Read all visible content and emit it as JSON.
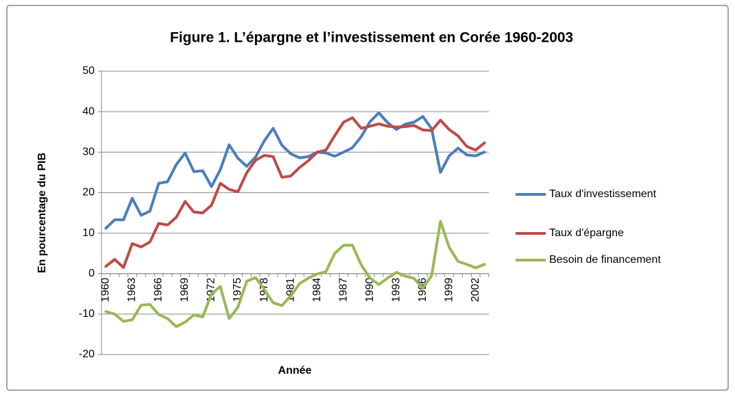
{
  "chart_data": {
    "type": "line",
    "title": "Figure 1. L’épargne et l’investissement en Corée 1960-2003",
    "y_label": "En pourcentage du PIB",
    "x_label": "Année",
    "categories": [
      "1960",
      null,
      null,
      "1963",
      null,
      null,
      "1966",
      null,
      null,
      "1969",
      null,
      null,
      "1972",
      null,
      null,
      "1975",
      null,
      null,
      "1978",
      null,
      null,
      "1981",
      null,
      null,
      "1984",
      null,
      null,
      "1987",
      null,
      null,
      "1990",
      null,
      null,
      "1993",
      null,
      null,
      "1996",
      null,
      null,
      "1999",
      null,
      null,
      "2002",
      null
    ],
    "series": [
      {
        "name": "Taux d'investissement",
        "color": "#4a7ebb",
        "values": [
          11.2,
          13.3,
          13.3,
          18.6,
          14.4,
          15.4,
          22.3,
          22.7,
          26.9,
          29.8,
          25.2,
          25.4,
          21.5,
          25.7,
          31.8,
          28.5,
          26.5,
          28.8,
          32.8,
          35.9,
          31.7,
          29.6,
          28.6,
          28.9,
          30.0,
          29.8,
          29.0,
          30.0,
          31.1,
          33.8,
          37.5,
          39.7,
          37.3,
          35.6,
          36.9,
          37.4,
          38.8,
          35.8,
          25.0,
          29.1,
          31.0,
          29.3,
          29.1,
          30.0
        ]
      },
      {
        "name": "Taux d'épargne",
        "color": "#be4b48",
        "values": [
          1.8,
          3.5,
          1.5,
          7.4,
          6.6,
          7.8,
          12.4,
          12.0,
          13.9,
          17.8,
          15.2,
          15.0,
          16.9,
          22.3,
          20.8,
          20.2,
          24.9,
          28.0,
          29.2,
          28.9,
          23.8,
          24.1,
          26.2,
          27.9,
          30.0,
          30.5,
          34.1,
          37.4,
          38.5,
          35.9,
          36.4,
          37.0,
          36.4,
          36.2,
          36.3,
          36.6,
          35.5,
          35.3,
          37.9,
          35.6,
          34.0,
          31.4,
          30.5,
          32.3
        ]
      },
      {
        "name": "Besoin de financement",
        "color": "#98b954",
        "values": [
          -9.4,
          -10.0,
          -11.8,
          -11.4,
          -7.8,
          -7.6,
          -10.1,
          -11.1,
          -13.1,
          -12.0,
          -10.2,
          -10.7,
          -5.0,
          -3.2,
          -11.1,
          -8.3,
          -1.9,
          -1.0,
          -3.9,
          -7.2,
          -7.9,
          -5.5,
          -2.5,
          -1.1,
          -0.1,
          0.5,
          5.0,
          7.0,
          7.0,
          2.2,
          -1.1,
          -2.7,
          -1.1,
          0.3,
          -0.6,
          -1.2,
          -3.6,
          -0.5,
          12.9,
          6.5,
          3.0,
          2.3,
          1.4,
          2.3
        ]
      }
    ],
    "ylim": [
      -20,
      50
    ],
    "yticks": [
      -20,
      -10,
      0,
      10,
      20,
      30,
      40,
      50
    ],
    "grid": true,
    "legend": "right"
  }
}
